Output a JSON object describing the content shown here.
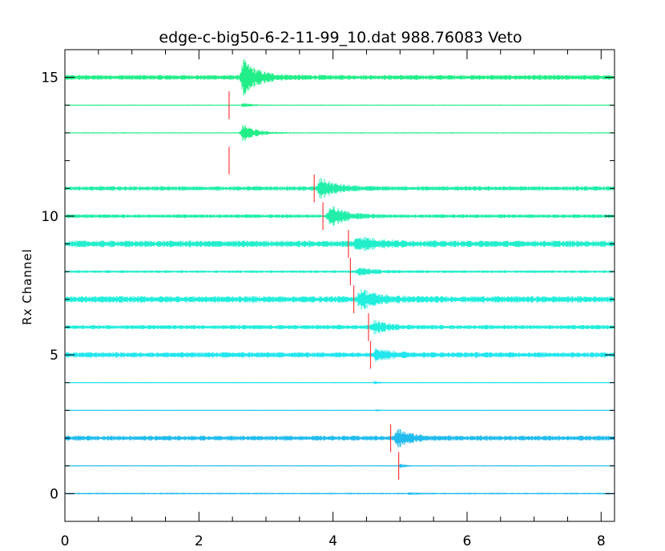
{
  "chart_data": {
    "type": "line",
    "title": "edge-c-big50-6-2-11-99_10.dat 988.76083   Veto",
    "xlabel": "",
    "ylabel": "Rx Channel",
    "xlim": [
      0,
      8.2
    ],
    "ylim": [
      -1,
      16
    ],
    "x_ticks": [
      "0",
      "2",
      "4",
      "6",
      "8"
    ],
    "y_ticks": [
      "0",
      "5",
      "10",
      "15"
    ],
    "grid": false,
    "channels": [
      {
        "channel": 15,
        "color": "#22ee88",
        "noise": 0.09,
        "onset": 2.6,
        "burst_amp": 0.6,
        "burst_dur": 0.45
      },
      {
        "channel": 14,
        "color": "#22ee88",
        "noise": 0.015,
        "onset": 2.62,
        "burst_amp": 0.09,
        "burst_dur": 0.25
      },
      {
        "channel": 13,
        "color": "#22ee88",
        "noise": 0.02,
        "onset": 2.6,
        "burst_amp": 0.32,
        "burst_dur": 0.4
      },
      {
        "channel": 11,
        "color": "#22eeaa",
        "noise": 0.08,
        "onset": 3.75,
        "burst_amp": 0.35,
        "burst_dur": 0.45
      },
      {
        "channel": 10,
        "color": "#22eeaa",
        "noise": 0.07,
        "onset": 3.9,
        "burst_amp": 0.38,
        "burst_dur": 0.45
      },
      {
        "channel": 9,
        "color": "#22eecc",
        "noise": 0.12,
        "onset": 4.3,
        "burst_amp": 0.22,
        "burst_dur": 0.6
      },
      {
        "channel": 8,
        "color": "#22eecc",
        "noise": 0.05,
        "onset": 4.32,
        "burst_amp": 0.12,
        "burst_dur": 0.5
      },
      {
        "channel": 7,
        "color": "#22eedd",
        "noise": 0.12,
        "onset": 4.35,
        "burst_amp": 0.35,
        "burst_dur": 0.45
      },
      {
        "channel": 6,
        "color": "#22eedd",
        "noise": 0.08,
        "onset": 4.55,
        "burst_amp": 0.2,
        "burst_dur": 0.45
      },
      {
        "channel": 5,
        "color": "#22e6ee",
        "noise": 0.1,
        "onset": 4.58,
        "burst_amp": 0.2,
        "burst_dur": 0.45
      },
      {
        "channel": 4,
        "color": "#22e0ee",
        "noise": 0.015,
        "onset": 4.6,
        "burst_amp": 0.06,
        "burst_dur": 0.15
      },
      {
        "channel": 3,
        "color": "#22ccee",
        "noise": 0.015,
        "onset": 4.62,
        "burst_amp": 0.04,
        "burst_dur": 0.12
      },
      {
        "channel": 2,
        "color": "#22bbee",
        "noise": 0.09,
        "onset": 4.9,
        "burst_amp": 0.28,
        "burst_dur": 0.45
      },
      {
        "channel": 1,
        "color": "#22bbee",
        "noise": 0.015,
        "onset": 4.98,
        "burst_amp": 0.08,
        "burst_dur": 0.18
      },
      {
        "channel": 0,
        "color": "#22bbee",
        "noise": 0.03,
        "onset": 5.1,
        "burst_amp": 0.03,
        "burst_dur": 0.3
      }
    ],
    "picks": [
      {
        "x": 2.45,
        "y_from": 13.5,
        "y_to": 14.5
      },
      {
        "x": 2.45,
        "y_from": 11.5,
        "y_to": 12.5
      },
      {
        "x": 3.72,
        "y_from": 10.5,
        "y_to": 11.5
      },
      {
        "x": 3.85,
        "y_from": 9.5,
        "y_to": 10.5
      },
      {
        "x": 4.23,
        "y_from": 8.5,
        "y_to": 9.5
      },
      {
        "x": 4.26,
        "y_from": 7.5,
        "y_to": 8.5
      },
      {
        "x": 4.31,
        "y_from": 6.5,
        "y_to": 7.5
      },
      {
        "x": 4.53,
        "y_from": 5.5,
        "y_to": 6.5
      },
      {
        "x": 4.56,
        "y_from": 4.5,
        "y_to": 5.5
      },
      {
        "x": 4.86,
        "y_from": 1.5,
        "y_to": 2.5
      },
      {
        "x": 4.98,
        "y_from": 0.5,
        "y_to": 1.5
      }
    ],
    "marker_color": "#ff3b3b"
  }
}
